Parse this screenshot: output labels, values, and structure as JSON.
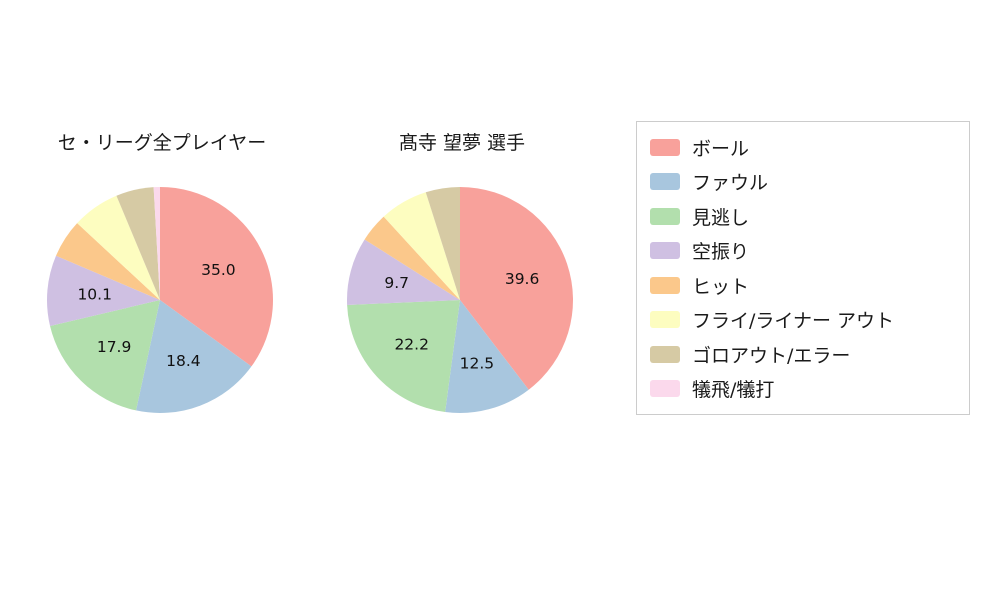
{
  "chart_data": [
    {
      "type": "pie",
      "title": "セ・リーグ全プレイヤー",
      "labels": [
        "ボール",
        "ファウル",
        "見逃し",
        "空振り",
        "ヒット",
        "フライ/ライナー アウト",
        "ゴロアウト/エラー",
        "犠飛/犠打"
      ],
      "values": [
        35.0,
        18.4,
        17.9,
        10.1,
        5.5,
        6.8,
        5.4,
        0.9
      ],
      "value_labels": [
        "35.0",
        "18.4",
        "17.9",
        "10.1",
        "",
        "",
        "",
        ""
      ],
      "start_angle_deg": -90,
      "direction": "clockwise"
    },
    {
      "type": "pie",
      "title": "髙寺 望夢  選手",
      "labels": [
        "ボール",
        "ファウル",
        "見逃し",
        "空振り",
        "ヒット",
        "フライ/ライナー アウト",
        "ゴロアウト/エラー",
        "犠飛/犠打"
      ],
      "values": [
        39.6,
        12.5,
        22.2,
        9.7,
        4.2,
        6.9,
        4.9,
        0.0
      ],
      "value_labels": [
        "39.6",
        "12.5",
        "22.2",
        "9.7",
        "",
        "",
        "",
        ""
      ],
      "start_angle_deg": -90,
      "direction": "clockwise"
    }
  ],
  "legend": {
    "position": "right",
    "entries": [
      {
        "label": "ボール",
        "color": "#f8a19b"
      },
      {
        "label": "ファウル",
        "color": "#a8c6de"
      },
      {
        "label": "見逃し",
        "color": "#b2dfad"
      },
      {
        "label": "空振り",
        "color": "#cfc0e2"
      },
      {
        "label": "ヒット",
        "color": "#fbc88b"
      },
      {
        "label": "フライ/ライナー アウト",
        "color": "#fdfdc0"
      },
      {
        "label": "ゴロアウト/エラー",
        "color": "#d6caa4"
      },
      {
        "label": "犠飛/犠打",
        "color": "#fbd9ec"
      }
    ]
  },
  "background_color": "#ffffff"
}
